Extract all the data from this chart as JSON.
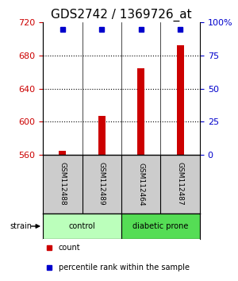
{
  "title": "GDS2742 / 1369726_at",
  "samples": [
    "GSM112488",
    "GSM112489",
    "GSM112464",
    "GSM112487"
  ],
  "bar_values": [
    565,
    607,
    665,
    692
  ],
  "percentile_values": [
    95,
    95,
    95,
    95
  ],
  "ylim_left": [
    560,
    720
  ],
  "ylim_right": [
    0,
    100
  ],
  "yticks_left": [
    560,
    600,
    640,
    680,
    720
  ],
  "yticks_right": [
    0,
    25,
    50,
    75,
    100
  ],
  "bar_color": "#cc0000",
  "percentile_color": "#0000cc",
  "bar_width": 0.18,
  "groups": [
    {
      "label": "control",
      "samples": [
        0,
        1
      ],
      "color": "#bbffbb"
    },
    {
      "label": "diabetic prone",
      "samples": [
        2,
        3
      ],
      "color": "#55dd55"
    }
  ],
  "strain_label": "strain",
  "legend_count_label": "count",
  "legend_percentile_label": "percentile rank within the sample",
  "background_color": "#ffffff",
  "title_fontsize": 11,
  "tick_fontsize": 8,
  "sample_band_color": "#cccccc"
}
